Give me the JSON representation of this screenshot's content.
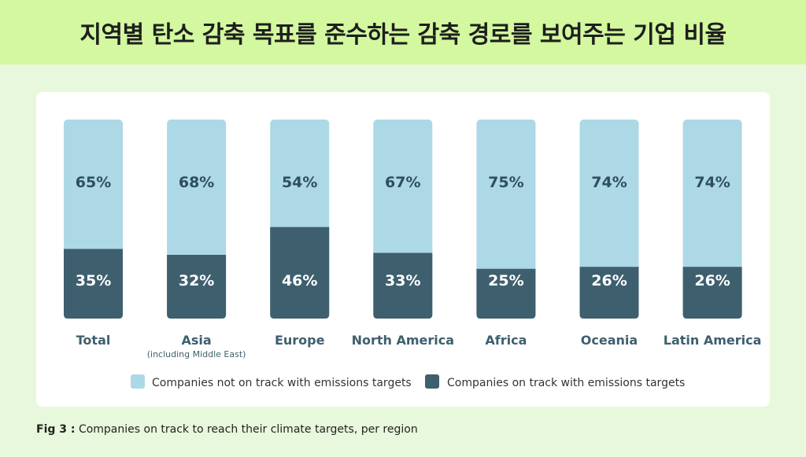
{
  "header": {
    "title": "지역별 탄소 감축 목표를 준수하는 감축 경로를 보여주는 기업 비율"
  },
  "caption": {
    "label": "Fig 3 :",
    "text": "Companies on track to reach their climate targets, per region"
  },
  "colors": {
    "not_on_track": "#add8e6",
    "on_track": "#3e5f6e",
    "page_bg": "#e8f8dc",
    "header_bg": "#d3f89f"
  },
  "chart_data": {
    "type": "bar",
    "stacked": true,
    "percent_stacked": true,
    "categories": [
      "Total",
      "Asia",
      "Europe",
      "North America",
      "Africa",
      "Oceania",
      "Latin America"
    ],
    "category_sublabels": [
      "",
      "(including Middle East)",
      "",
      "",
      "",
      "",
      ""
    ],
    "series": [
      {
        "name": "Companies on track with emissions targets",
        "values": [
          35,
          32,
          46,
          33,
          25,
          26,
          26
        ],
        "color": "#3e5f6e"
      },
      {
        "name": "Companies not on track with emissions targets",
        "values": [
          65,
          68,
          54,
          67,
          75,
          74,
          74
        ],
        "color": "#add8e6"
      }
    ],
    "value_suffix": "%",
    "legend": {
      "placement": "bottom",
      "order": [
        "Companies not on track with emissions targets",
        "Companies on track with emissions targets"
      ]
    },
    "ylim": [
      0,
      100
    ],
    "grid": false
  }
}
